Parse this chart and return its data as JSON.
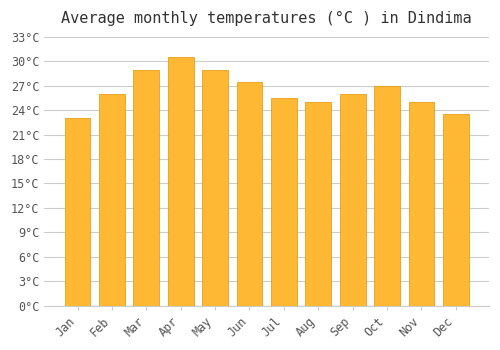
{
  "title": "Average monthly temperatures (°C ) in Dindima",
  "months": [
    "Jan",
    "Feb",
    "Mar",
    "Apr",
    "May",
    "Jun",
    "Jul",
    "Aug",
    "Sep",
    "Oct",
    "Nov",
    "Dec"
  ],
  "values": [
    23.0,
    26.0,
    29.0,
    30.5,
    29.0,
    27.5,
    25.5,
    25.0,
    26.0,
    27.0,
    25.0,
    23.5
  ],
  "bar_color_face": "#FFA500",
  "bar_color_edge": "#F0A000",
  "ylim": [
    0,
    33
  ],
  "ytick_step": 3,
  "background_color": "#ffffff",
  "grid_color": "#cccccc",
  "title_fontsize": 11,
  "tick_fontsize": 8.5
}
